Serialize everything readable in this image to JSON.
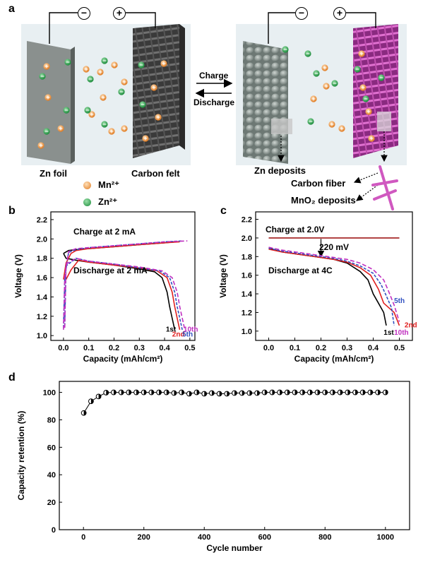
{
  "panel_a": {
    "letter": "a",
    "arrow_top_label": "Charge",
    "arrow_bottom_label": "Discharge",
    "left_electrode_label": "Zn foil",
    "right_electrode_label": "Carbon felt",
    "zn_deposits_label": "Zn deposits",
    "carbon_fiber_label": "Carbon fiber",
    "mno2_deposits_label": "MnO₂ deposits",
    "legend": [
      {
        "text": "Mn²⁺",
        "color": "#f0a860"
      },
      {
        "text": "Zn²⁺",
        "color": "#3aaa58"
      }
    ],
    "terminal_minus": "−",
    "terminal_plus": "+"
  },
  "chart_data": [
    {
      "panel": "b",
      "type": "line",
      "xlabel": "Capacity (mAh/cm²)",
      "ylabel": "Voltage (V)",
      "xlim": [
        -0.05,
        0.52
      ],
      "ylim": [
        0.95,
        2.28
      ],
      "xticks": [
        "0.0",
        "0.1",
        "0.2",
        "0.3",
        "0.4",
        "0.5"
      ],
      "yticks": [
        "1.0",
        "1.2",
        "1.4",
        "1.6",
        "1.8",
        "2.0",
        "2.2"
      ],
      "annotations": [
        "Charge at 2 mA",
        "Discharge at 2 mA"
      ],
      "series": [
        {
          "name": "1st",
          "color": "#000000",
          "dash": "",
          "charge": [
            [
              0.0,
              1.85
            ],
            [
              0.02,
              1.88
            ],
            [
              0.05,
              1.89
            ],
            [
              0.1,
              1.9
            ],
            [
              0.2,
              1.92
            ],
            [
              0.3,
              1.94
            ],
            [
              0.4,
              1.96
            ],
            [
              0.44,
              1.97
            ]
          ],
          "discharge": [
            [
              0.0,
              1.85
            ],
            [
              0.01,
              1.8
            ],
            [
              0.05,
              1.78
            ],
            [
              0.1,
              1.76
            ],
            [
              0.2,
              1.73
            ],
            [
              0.3,
              1.69
            ],
            [
              0.36,
              1.66
            ],
            [
              0.39,
              1.6
            ],
            [
              0.41,
              1.45
            ],
            [
              0.42,
              1.3
            ],
            [
              0.43,
              1.18
            ],
            [
              0.44,
              1.06
            ]
          ]
        },
        {
          "name": "2nd",
          "color": "#e02020",
          "dash": "",
          "charge": [
            [
              0.0,
              1.58
            ],
            [
              0.01,
              1.75
            ],
            [
              0.03,
              1.85
            ],
            [
              0.05,
              1.88
            ],
            [
              0.1,
              1.9
            ],
            [
              0.2,
              1.92
            ],
            [
              0.3,
              1.94
            ],
            [
              0.4,
              1.96
            ],
            [
              0.46,
              1.97
            ]
          ],
          "discharge": [
            [
              0.01,
              1.58
            ],
            [
              0.03,
              1.68
            ],
            [
              0.06,
              1.78
            ],
            [
              0.1,
              1.76
            ],
            [
              0.2,
              1.73
            ],
            [
              0.3,
              1.7
            ],
            [
              0.37,
              1.67
            ],
            [
              0.41,
              1.6
            ],
            [
              0.43,
              1.45
            ],
            [
              0.44,
              1.3
            ],
            [
              0.45,
              1.18
            ],
            [
              0.46,
              1.06
            ]
          ]
        },
        {
          "name": "5th",
          "color": "#3050c0",
          "dash": "4,2",
          "charge": [
            [
              0.0,
              1.08
            ],
            [
              0.005,
              1.6
            ],
            [
              0.02,
              1.86
            ],
            [
              0.05,
              1.89
            ],
            [
              0.1,
              1.91
            ],
            [
              0.2,
              1.93
            ],
            [
              0.3,
              1.95
            ],
            [
              0.4,
              1.97
            ],
            [
              0.47,
              1.98
            ]
          ],
          "discharge": [
            [
              0.005,
              1.1
            ],
            [
              0.01,
              1.72
            ],
            [
              0.05,
              1.8
            ],
            [
              0.1,
              1.77
            ],
            [
              0.2,
              1.74
            ],
            [
              0.3,
              1.7
            ],
            [
              0.38,
              1.67
            ],
            [
              0.42,
              1.6
            ],
            [
              0.44,
              1.45
            ],
            [
              0.45,
              1.3
            ],
            [
              0.46,
              1.18
            ],
            [
              0.47,
              1.06
            ]
          ]
        },
        {
          "name": "10th",
          "color": "#c030c0",
          "dash": "6,3",
          "charge": [
            [
              0.0,
              1.06
            ],
            [
              0.005,
              1.62
            ],
            [
              0.02,
              1.87
            ],
            [
              0.05,
              1.9
            ],
            [
              0.1,
              1.91
            ],
            [
              0.2,
              1.93
            ],
            [
              0.3,
              1.95
            ],
            [
              0.4,
              1.97
            ],
            [
              0.49,
              1.98
            ]
          ],
          "discharge": [
            [
              0.005,
              1.08
            ],
            [
              0.01,
              1.74
            ],
            [
              0.05,
              1.8
            ],
            [
              0.1,
              1.77
            ],
            [
              0.2,
              1.74
            ],
            [
              0.3,
              1.71
            ],
            [
              0.39,
              1.67
            ],
            [
              0.43,
              1.6
            ],
            [
              0.45,
              1.45
            ],
            [
              0.46,
              1.3
            ],
            [
              0.47,
              1.18
            ],
            [
              0.48,
              1.06
            ]
          ]
        }
      ],
      "end_labels": [
        {
          "text": "1st",
          "color": "#000000"
        },
        {
          "text": "10th",
          "color": "#c030c0"
        },
        {
          "text": "2nd",
          "color": "#e02020"
        },
        {
          "text": "5th",
          "color": "#3050c0"
        }
      ]
    },
    {
      "panel": "c",
      "type": "line",
      "xlabel": "Capacity (mAh/cm²)",
      "ylabel": "Voltage (V)",
      "xlim": [
        -0.05,
        0.55
      ],
      "ylim": [
        0.9,
        2.28
      ],
      "xticks": [
        "0.0",
        "0.1",
        "0.2",
        "0.3",
        "0.4",
        "0.5"
      ],
      "yticks": [
        "1.0",
        "1.2",
        "1.4",
        "1.6",
        "1.8",
        "2.0",
        "2.2"
      ],
      "annotations": [
        "Charge at 2.0V",
        "220 mV",
        "Discharge at 4C"
      ],
      "charge_line": {
        "y": 2.0,
        "x0": 0.0,
        "x1": 0.5,
        "color": "#a01818"
      },
      "series": [
        {
          "name": "1st",
          "color": "#000000",
          "dash": "",
          "points": [
            [
              0.0,
              1.89
            ],
            [
              0.05,
              1.85
            ],
            [
              0.1,
              1.83
            ],
            [
              0.15,
              1.81
            ],
            [
              0.2,
              1.79
            ],
            [
              0.25,
              1.77
            ],
            [
              0.3,
              1.73
            ],
            [
              0.35,
              1.64
            ],
            [
              0.38,
              1.55
            ],
            [
              0.4,
              1.4
            ],
            [
              0.42,
              1.3
            ],
            [
              0.44,
              1.2
            ],
            [
              0.45,
              1.06
            ]
          ]
        },
        {
          "name": "2nd",
          "color": "#e02020",
          "dash": "",
          "points": [
            [
              0.0,
              1.88
            ],
            [
              0.05,
              1.85
            ],
            [
              0.1,
              1.83
            ],
            [
              0.15,
              1.81
            ],
            [
              0.2,
              1.79
            ],
            [
              0.25,
              1.77
            ],
            [
              0.3,
              1.74
            ],
            [
              0.35,
              1.68
            ],
            [
              0.39,
              1.6
            ],
            [
              0.42,
              1.45
            ],
            [
              0.44,
              1.3
            ],
            [
              0.46,
              1.25
            ],
            [
              0.48,
              1.2
            ],
            [
              0.5,
              1.06
            ]
          ]
        },
        {
          "name": "5th",
          "color": "#3050c0",
          "dash": "4,2",
          "points": [
            [
              0.0,
              1.89
            ],
            [
              0.05,
              1.86
            ],
            [
              0.1,
              1.84
            ],
            [
              0.15,
              1.82
            ],
            [
              0.2,
              1.8
            ],
            [
              0.25,
              1.78
            ],
            [
              0.3,
              1.75
            ],
            [
              0.35,
              1.7
            ],
            [
              0.4,
              1.62
            ],
            [
              0.43,
              1.5
            ],
            [
              0.45,
              1.38
            ],
            [
              0.47,
              1.25
            ],
            [
              0.48,
              1.06
            ]
          ]
        },
        {
          "name": "10th",
          "color": "#c030c0",
          "dash": "6,3",
          "points": [
            [
              0.0,
              1.9
            ],
            [
              0.05,
              1.87
            ],
            [
              0.1,
              1.85
            ],
            [
              0.15,
              1.83
            ],
            [
              0.2,
              1.81
            ],
            [
              0.25,
              1.79
            ],
            [
              0.3,
              1.77
            ],
            [
              0.35,
              1.73
            ],
            [
              0.4,
              1.66
            ],
            [
              0.44,
              1.55
            ],
            [
              0.46,
              1.42
            ],
            [
              0.48,
              1.28
            ],
            [
              0.5,
              1.1
            ]
          ]
        }
      ],
      "end_labels": [
        {
          "text": "5th",
          "color": "#3050c0"
        },
        {
          "text": "2nd",
          "color": "#e02020"
        },
        {
          "text": "1st",
          "color": "#000000"
        },
        {
          "text": "10th",
          "color": "#c030c0"
        }
      ]
    },
    {
      "panel": "d",
      "type": "scatter",
      "xlabel": "Cycle number",
      "ylabel": "Capacity retention (%)",
      "xlim": [
        -80,
        1080
      ],
      "ylim": [
        0,
        108
      ],
      "xticks": [
        "0",
        "200",
        "400",
        "600",
        "800",
        "1000"
      ],
      "yticks": [
        "0",
        "20",
        "40",
        "60",
        "80",
        "100"
      ],
      "x": [
        1,
        25,
        50,
        75,
        100,
        125,
        150,
        175,
        200,
        225,
        250,
        275,
        300,
        325,
        350,
        375,
        400,
        425,
        450,
        475,
        500,
        525,
        550,
        575,
        600,
        625,
        650,
        675,
        700,
        725,
        750,
        775,
        800,
        825,
        850,
        875,
        900,
        925,
        950,
        975,
        1000
      ],
      "y": [
        85,
        93.5,
        97,
        99.8,
        100,
        100,
        100,
        100,
        100,
        100,
        100,
        100,
        99.5,
        100,
        99,
        100,
        99,
        99.5,
        99,
        99,
        99.5,
        99.5,
        99.5,
        99.5,
        100,
        100,
        100,
        100,
        100,
        100,
        100,
        100,
        100,
        100,
        100,
        100,
        100,
        100,
        100,
        100,
        100
      ]
    }
  ]
}
